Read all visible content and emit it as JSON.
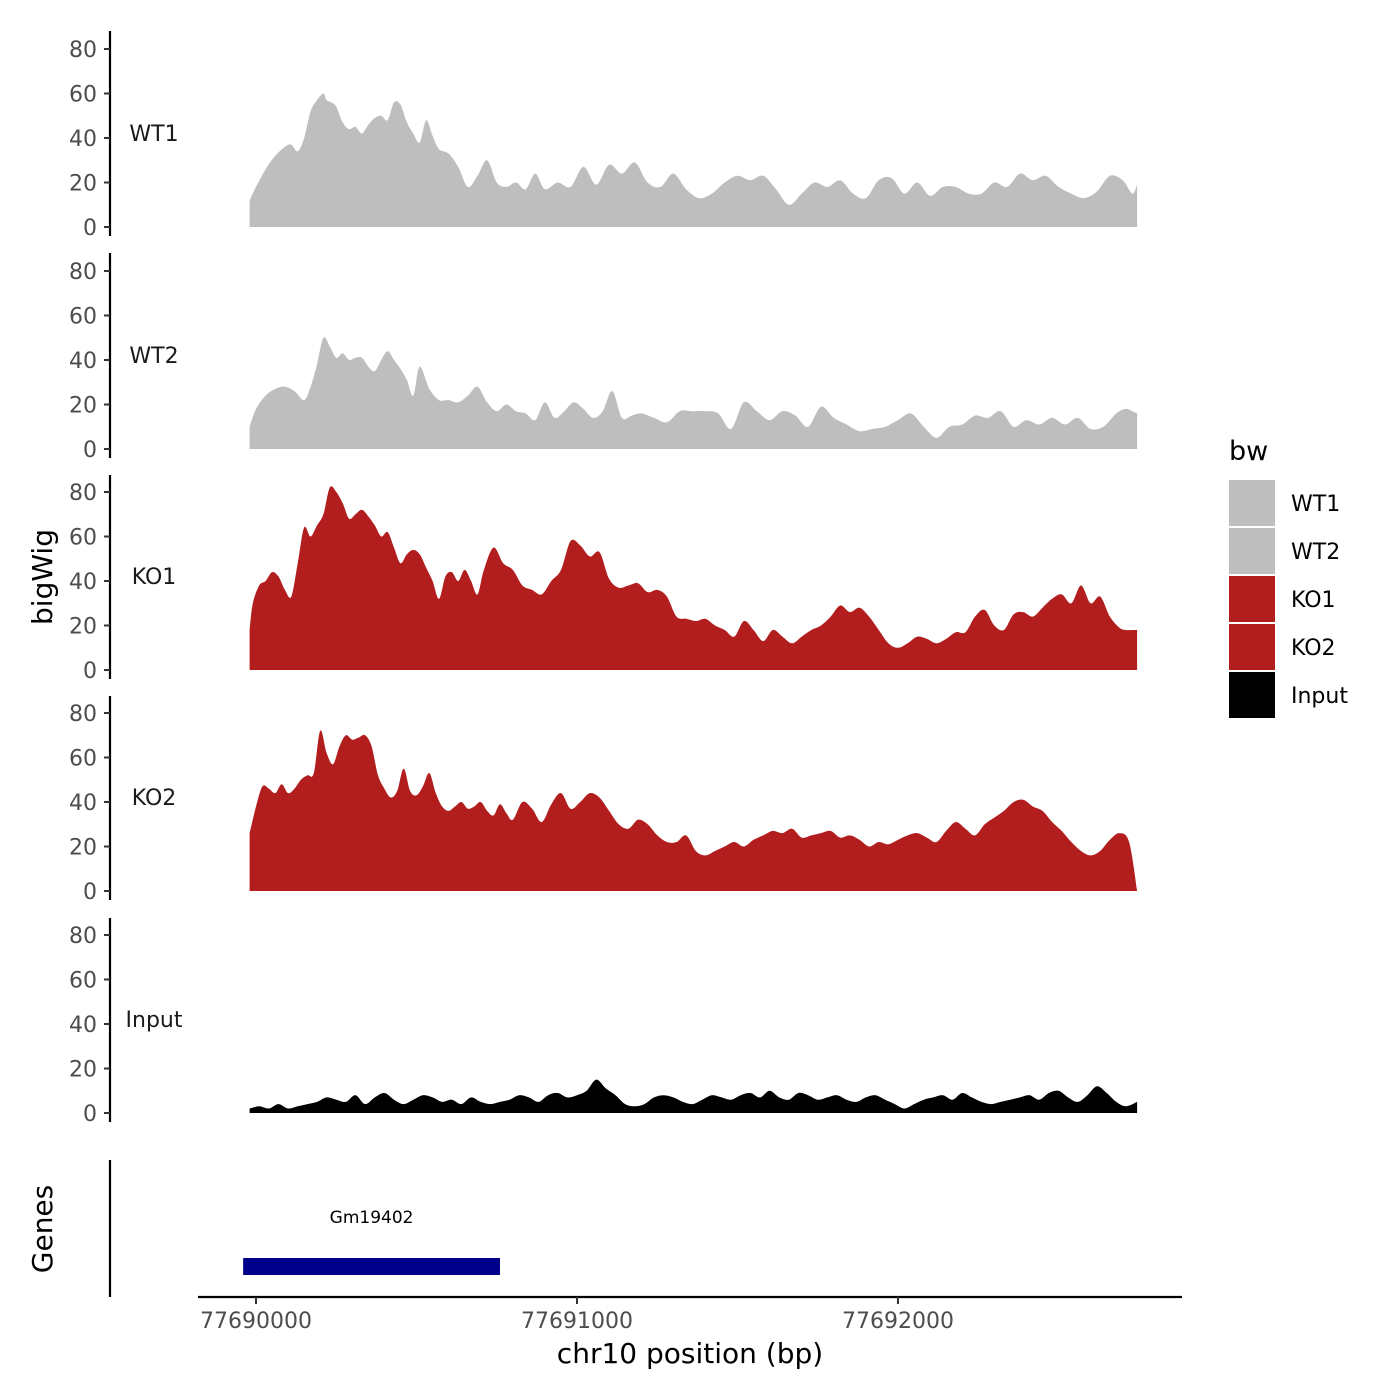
{
  "chart_data": {
    "type": "area",
    "ylabel": "bigWig",
    "xlabel": "chr10 position (bp)",
    "x_ticks": [
      77690000,
      77691000,
      77692000
    ],
    "y_ticks": [
      0,
      20,
      40,
      60,
      80
    ],
    "ylim": [
      0,
      88
    ],
    "xlim": [
      77689820,
      77692880
    ],
    "legend": {
      "title": "bw",
      "placement": "right",
      "entries": [
        {
          "label": "WT1",
          "color": "#bebebe"
        },
        {
          "label": "WT2",
          "color": "#bebebe"
        },
        {
          "label": "KO1",
          "color": "#b21e1e"
        },
        {
          "label": "KO2",
          "color": "#b21e1e"
        },
        {
          "label": "Input",
          "color": "#000000"
        }
      ]
    },
    "series": [
      {
        "name": "WT1",
        "color": "#bebebe",
        "x": [
          77689980,
          77690000,
          77690030,
          77690060,
          77690090,
          77690110,
          77690130,
          77690150,
          77690170,
          77690190,
          77690210,
          77690220,
          77690235,
          77690250,
          77690270,
          77690290,
          77690310,
          77690330,
          77690350,
          77690370,
          77690390,
          77690410,
          77690430,
          77690450,
          77690470,
          77690490,
          77690510,
          77690530,
          77690550,
          77690570,
          77690600,
          77690630,
          77690660,
          77690690,
          77690720,
          77690750,
          77690780,
          77690810,
          77690840,
          77690870,
          77690900,
          77690940,
          77690980,
          77691020,
          77691060,
          77691100,
          77691140,
          77691180,
          77691220,
          77691260,
          77691300,
          77691340,
          77691380,
          77691420,
          77691460,
          77691500,
          77691540,
          77691580,
          77691620,
          77691660,
          77691700,
          77691740,
          77691780,
          77691820,
          77691860,
          77691900,
          77691940,
          77691980,
          77692020,
          77692060,
          77692100,
          77692140,
          77692180,
          77692220,
          77692260,
          77692300,
          77692340,
          77692380,
          77692420,
          77692460,
          77692500,
          77692540,
          77692580,
          77692620,
          77692660,
          77692700,
          77692730,
          77692745
        ],
        "values": [
          12,
          18,
          26,
          32,
          36,
          37,
          34,
          40,
          52,
          57,
          60,
          57,
          56,
          54,
          47,
          44,
          45,
          42,
          46,
          49,
          50,
          48,
          56,
          55,
          47,
          42,
          38,
          48,
          41,
          35,
          33,
          27,
          18,
          23,
          30,
          20,
          18,
          20,
          17,
          24,
          17,
          20,
          18,
          27,
          19,
          28,
          24,
          29,
          20,
          18,
          24,
          17,
          13,
          15,
          20,
          23,
          21,
          23,
          17,
          10,
          15,
          20,
          18,
          21,
          15,
          13,
          21,
          22,
          15,
          20,
          14,
          18,
          18,
          15,
          15,
          20,
          18,
          24,
          21,
          23,
          18,
          15,
          13,
          16,
          23,
          21,
          15,
          19
        ]
      },
      {
        "name": "WT2",
        "color": "#bebebe",
        "x": [
          77689980,
          77690000,
          77690030,
          77690060,
          77690090,
          77690120,
          77690150,
          77690170,
          77690190,
          77690210,
          77690230,
          77690250,
          77690270,
          77690290,
          77690310,
          77690330,
          77690350,
          77690370,
          77690390,
          77690410,
          77690430,
          77690450,
          77690470,
          77690490,
          77690510,
          77690540,
          77690570,
          77690600,
          77690630,
          77690660,
          77690690,
          77690720,
          77690750,
          77690780,
          77690810,
          77690840,
          77690870,
          77690900,
          77690930,
          77690960,
          77690990,
          77691020,
          77691050,
          77691080,
          77691110,
          77691140,
          77691170,
          77691200,
          77691240,
          77691280,
          77691320,
          77691360,
          77691400,
          77691440,
          77691480,
          77691520,
          77691560,
          77691600,
          77691640,
          77691680,
          77691720,
          77691760,
          77691800,
          77691840,
          77691880,
          77691920,
          77691960,
          77692000,
          77692040,
          77692080,
          77692120,
          77692160,
          77692200,
          77692240,
          77692280,
          77692320,
          77692360,
          77692400,
          77692440,
          77692480,
          77692520,
          77692560,
          77692600,
          77692640,
          77692680,
          77692710,
          77692730,
          77692745
        ],
        "values": [
          10,
          18,
          24,
          27,
          28,
          26,
          22,
          28,
          38,
          50,
          46,
          41,
          43,
          40,
          41,
          41,
          37,
          35,
          40,
          44,
          40,
          36,
          31,
          24,
          37,
          27,
          22,
          22,
          21,
          24,
          28,
          21,
          17,
          20,
          17,
          16,
          13,
          21,
          14,
          17,
          21,
          18,
          14,
          17,
          26,
          14,
          15,
          16,
          14,
          12,
          17,
          17,
          17,
          16,
          9,
          21,
          17,
          13,
          17,
          15,
          10,
          19,
          14,
          11,
          8,
          9,
          10,
          13,
          16,
          10,
          5,
          10,
          11,
          15,
          14,
          17,
          10,
          13,
          11,
          14,
          11,
          14,
          9,
          10,
          16,
          18,
          17,
          16
        ]
      },
      {
        "name": "KO1",
        "color": "#b21e1e",
        "x": [
          77689980,
          77689990,
          77690010,
          77690030,
          77690050,
          77690070,
          77690090,
          77690110,
          77690130,
          77690150,
          77690170,
          77690190,
          77690210,
          77690230,
          77690250,
          77690270,
          77690290,
          77690310,
          77690330,
          77690350,
          77690370,
          77690390,
          77690410,
          77690430,
          77690450,
          77690470,
          77690490,
          77690510,
          77690530,
          77690550,
          77690570,
          77690590,
          77690610,
          77690630,
          77690650,
          77690670,
          77690690,
          77690710,
          77690740,
          77690770,
          77690800,
          77690830,
          77690860,
          77690890,
          77690920,
          77690950,
          77690980,
          77691010,
          77691040,
          77691070,
          77691100,
          77691130,
          77691160,
          77691190,
          77691220,
          77691250,
          77691280,
          77691310,
          77691340,
          77691370,
          77691400,
          77691430,
          77691460,
          77691490,
          77691520,
          77691550,
          77691580,
          77691610,
          77691640,
          77691670,
          77691700,
          77691730,
          77691760,
          77691790,
          77691820,
          77691850,
          77691880,
          77691910,
          77691940,
          77691970,
          77692000,
          77692030,
          77692060,
          77692090,
          77692120,
          77692150,
          77692180,
          77692210,
          77692240,
          77692270,
          77692300,
          77692330,
          77692360,
          77692390,
          77692420,
          77692450,
          77692480,
          77692510,
          77692540,
          77692570,
          77692600,
          77692630,
          77692660,
          77692690,
          77692710,
          77692730,
          77692745
        ],
        "values": [
          18,
          30,
          38,
          40,
          44,
          42,
          36,
          33,
          48,
          64,
          60,
          65,
          70,
          82,
          80,
          75,
          68,
          70,
          72,
          69,
          65,
          60,
          62,
          55,
          48,
          52,
          54,
          52,
          46,
          40,
          32,
          42,
          44,
          40,
          45,
          40,
          34,
          45,
          55,
          48,
          45,
          38,
          36,
          34,
          40,
          45,
          58,
          56,
          51,
          53,
          41,
          37,
          38,
          39,
          35,
          36,
          33,
          24,
          23,
          22,
          23,
          20,
          18,
          15,
          22,
          18,
          13,
          18,
          15,
          12,
          15,
          18,
          20,
          24,
          29,
          26,
          28,
          24,
          18,
          12,
          10,
          12,
          15,
          14,
          12,
          14,
          17,
          17,
          24,
          27,
          20,
          18,
          25,
          26,
          24,
          28,
          32,
          34,
          30,
          38,
          30,
          33,
          24,
          19,
          18,
          18,
          18
        ]
      },
      {
        "name": "KO2",
        "color": "#b21e1e",
        "x": [
          77689980,
          77690000,
          77690020,
          77690040,
          77690060,
          77690080,
          77690100,
          77690120,
          77690140,
          77690160,
          77690180,
          77690200,
          77690220,
          77690240,
          77690260,
          77690280,
          77690300,
          77690320,
          77690340,
          77690360,
          77690380,
          77690400,
          77690420,
          77690440,
          77690460,
          77690480,
          77690500,
          77690520,
          77690540,
          77690560,
          77690580,
          77690600,
          77690620,
          77690640,
          77690660,
          77690680,
          77690700,
          77690720,
          77690740,
          77690760,
          77690780,
          77690800,
          77690830,
          77690860,
          77690890,
          77690920,
          77690950,
          77690980,
          77691010,
          77691040,
          77691070,
          77691100,
          77691130,
          77691160,
          77691190,
          77691220,
          77691250,
          77691280,
          77691310,
          77691340,
          77691370,
          77691400,
          77691430,
          77691460,
          77691490,
          77691520,
          77691550,
          77691580,
          77691610,
          77691640,
          77691670,
          77691700,
          77691730,
          77691760,
          77691790,
          77691820,
          77691850,
          77691880,
          77691910,
          77691940,
          77691970,
          77692000,
          77692030,
          77692060,
          77692090,
          77692120,
          77692150,
          77692180,
          77692210,
          77692240,
          77692270,
          77692300,
          77692330,
          77692360,
          77692390,
          77692420,
          77692450,
          77692480,
          77692510,
          77692540,
          77692570,
          77692600,
          77692630,
          77692660,
          77692690,
          77692720,
          77692745
        ],
        "values": [
          26,
          38,
          47,
          46,
          44,
          48,
          44,
          46,
          50,
          52,
          53,
          72,
          62,
          57,
          65,
          70,
          68,
          69,
          70,
          65,
          52,
          46,
          42,
          45,
          55,
          45,
          43,
          47,
          53,
          44,
          38,
          36,
          38,
          40,
          37,
          38,
          40,
          36,
          34,
          39,
          35,
          32,
          40,
          37,
          31,
          39,
          44,
          37,
          40,
          44,
          42,
          36,
          30,
          28,
          32,
          30,
          25,
          22,
          22,
          25,
          18,
          16,
          18,
          20,
          22,
          20,
          23,
          25,
          27,
          26,
          28,
          24,
          25,
          26,
          27,
          24,
          25,
          23,
          20,
          22,
          21,
          23,
          25,
          26,
          24,
          22,
          27,
          31,
          28,
          25,
          30,
          33,
          36,
          40,
          41,
          38,
          36,
          31,
          27,
          22,
          18,
          16,
          18,
          23,
          26,
          22,
          0
        ]
      },
      {
        "name": "Input",
        "color": "#000000",
        "x": [
          77689980,
          77690010,
          77690040,
          77690070,
          77690100,
          77690130,
          77690160,
          77690190,
          77690220,
          77690250,
          77690280,
          77690310,
          77690340,
          77690370,
          77690400,
          77690430,
          77690460,
          77690490,
          77690520,
          77690550,
          77690580,
          77690610,
          77690640,
          77690670,
          77690700,
          77690730,
          77690760,
          77690790,
          77690820,
          77690850,
          77690880,
          77690910,
          77690940,
          77690970,
          77691000,
          77691030,
          77691060,
          77691090,
          77691120,
          77691150,
          77691180,
          77691210,
          77691240,
          77691270,
          77691300,
          77691330,
          77691360,
          77691390,
          77691420,
          77691450,
          77691480,
          77691510,
          77691540,
          77691570,
          77691600,
          77691630,
          77691660,
          77691690,
          77691720,
          77691750,
          77691780,
          77691810,
          77691840,
          77691870,
          77691900,
          77691930,
          77691960,
          77691990,
          77692020,
          77692050,
          77692080,
          77692110,
          77692140,
          77692170,
          77692200,
          77692230,
          77692260,
          77692290,
          77692320,
          77692350,
          77692380,
          77692410,
          77692440,
          77692470,
          77692500,
          77692530,
          77692560,
          77692590,
          77692620,
          77692650,
          77692680,
          77692710,
          77692745
        ],
        "values": [
          2,
          3,
          2,
          4,
          2,
          3,
          4,
          5,
          7,
          6,
          5,
          8,
          4,
          7,
          9,
          6,
          4,
          6,
          8,
          7,
          5,
          6,
          4,
          7,
          5,
          4,
          5,
          6,
          8,
          7,
          5,
          8,
          9,
          7,
          8,
          10,
          15,
          11,
          8,
          4,
          3,
          4,
          7,
          8,
          7,
          5,
          4,
          6,
          8,
          7,
          6,
          8,
          9,
          7,
          10,
          7,
          6,
          9,
          8,
          6,
          7,
          8,
          6,
          5,
          7,
          8,
          6,
          4,
          2,
          4,
          6,
          7,
          8,
          6,
          9,
          7,
          5,
          4,
          5,
          6,
          7,
          8,
          6,
          9,
          10,
          7,
          5,
          8,
          12,
          9,
          5,
          3,
          5
        ]
      }
    ],
    "gene_track": {
      "label": "Genes",
      "genes": [
        {
          "name": "Gm19402",
          "start": 77689960,
          "end": 77690760,
          "color": "#00008b"
        }
      ]
    }
  }
}
